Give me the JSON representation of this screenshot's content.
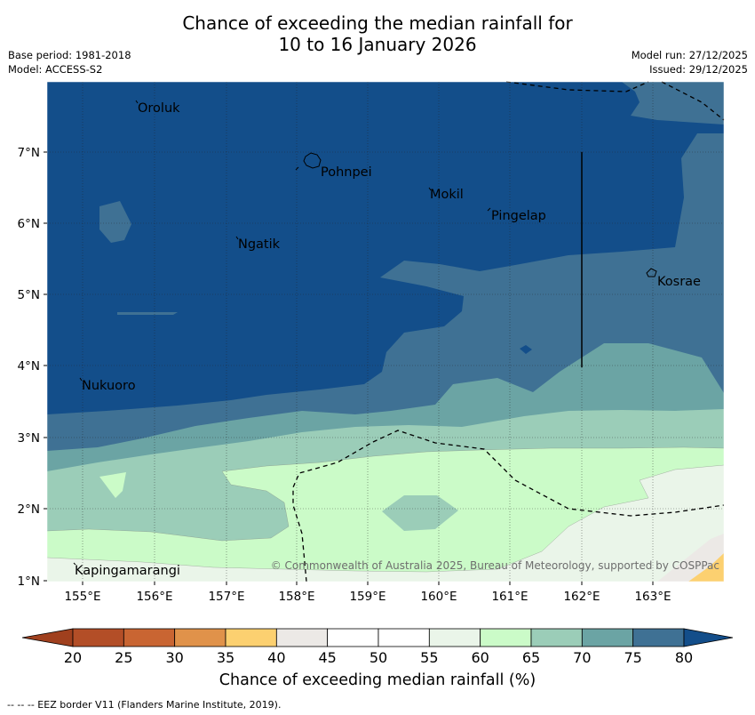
{
  "title": {
    "line1": "Chance of exceeding the median rainfall for",
    "line2": "10 to 16 January 2026"
  },
  "meta": {
    "base_period": "Base period: 1981-2018",
    "model": "Model: ACCESS-S2",
    "model_run": "Model run: 27/12/2025",
    "issued": "Issued: 29/12/2025"
  },
  "axes": {
    "x_ticks": [
      "155°E",
      "156°E",
      "157°E",
      "158°E",
      "159°E",
      "160°E",
      "161°E",
      "162°E",
      "163°E"
    ],
    "y_ticks": [
      "7°N",
      "6°N",
      "5°N",
      "4°N",
      "3°N",
      "2°N",
      "1°N"
    ]
  },
  "places": [
    {
      "name": "Oroluk"
    },
    {
      "name": "Pohnpei"
    },
    {
      "name": "Mokil"
    },
    {
      "name": "Pingelap"
    },
    {
      "name": "Ngatik"
    },
    {
      "name": "Kosrae"
    },
    {
      "name": "Nukuoro"
    },
    {
      "name": "Kapingamarangi"
    }
  ],
  "copyright": "© Commonwealth of Australia 2025, Bureau of Meteorology, supported by COSPPac",
  "colorbar": {
    "labels": [
      "20",
      "25",
      "30",
      "35",
      "40",
      "45",
      "50",
      "55",
      "60",
      "65",
      "70",
      "75",
      "80"
    ],
    "colors": [
      "#a0401e",
      "#b34e27",
      "#c96532",
      "#e0924a",
      "#fcd070",
      "#ece9e6",
      "#ffffff",
      "#ffffff",
      "#eaf5e9",
      "#cbfbc8",
      "#9bcdb8",
      "#6ba4a4",
      "#3f7194",
      "#134e8a"
    ],
    "title": "Chance of exceeding median rainfall (%)"
  },
  "legend_note": "--  --  -- EEZ border V11 (Flanders Marine Institute, 2019)."
}
